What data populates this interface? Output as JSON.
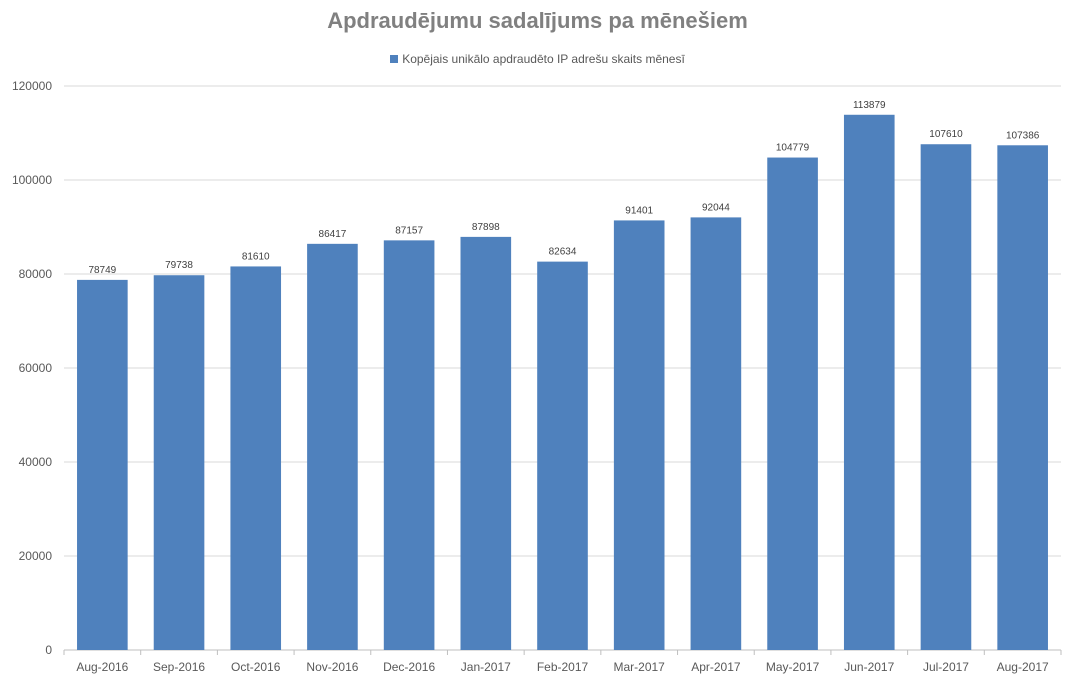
{
  "chart_data": {
    "type": "bar",
    "title": "Apdraudējumu sadalījums pa mēnešiem",
    "xlabel": "",
    "ylabel": "",
    "ylim": [
      0,
      120000
    ],
    "yticks": [
      0,
      20000,
      40000,
      60000,
      80000,
      100000,
      120000
    ],
    "grid": true,
    "legend_position": "top",
    "categories": [
      "Aug-2016",
      "Sep-2016",
      "Oct-2016",
      "Nov-2016",
      "Dec-2016",
      "Jan-2017",
      "Feb-2017",
      "Mar-2017",
      "Apr-2017",
      "May-2017",
      "Jun-2017",
      "Jul-2017",
      "Aug-2017"
    ],
    "series": [
      {
        "name": "Kopējais unikālo apdraudēto IP adrešu skaits mēnesī",
        "color": "#4f81bd",
        "values": [
          78749,
          79738,
          81610,
          86417,
          87157,
          87898,
          82634,
          91401,
          92044,
          104779,
          113879,
          107610,
          107386
        ]
      }
    ]
  }
}
